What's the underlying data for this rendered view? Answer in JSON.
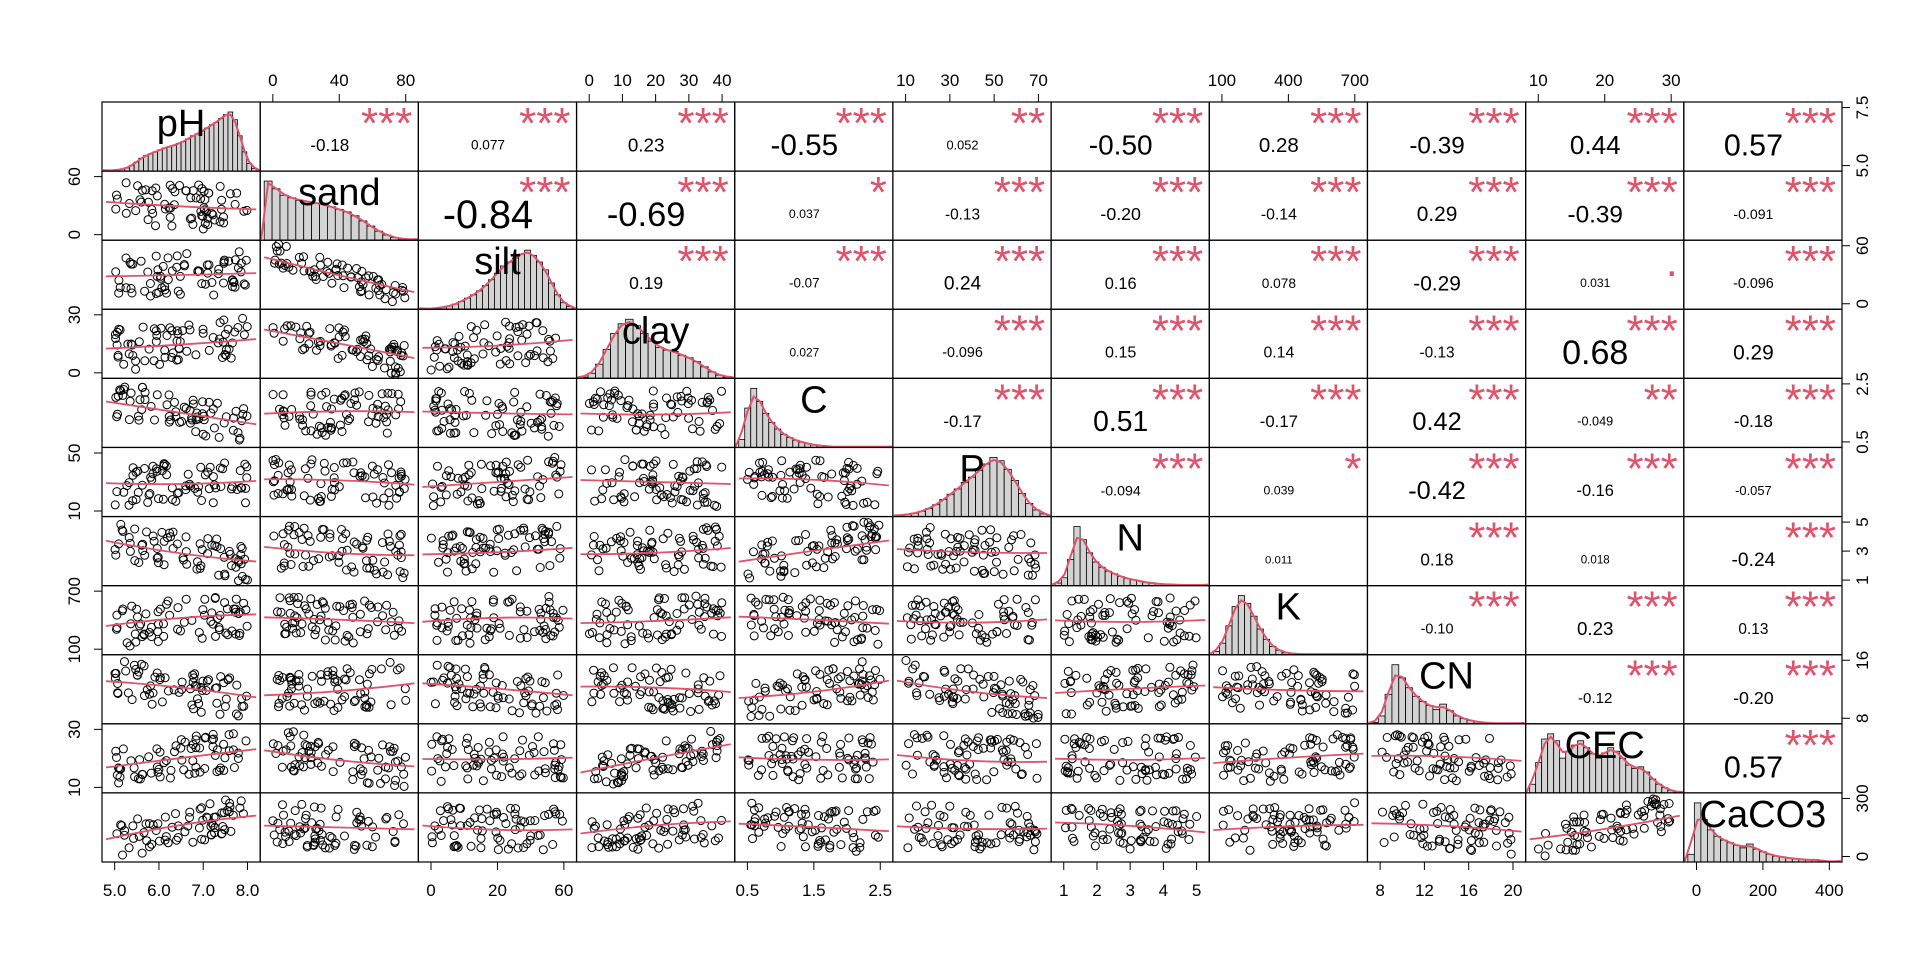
{
  "chart_data": {
    "type": "scatter-matrix",
    "variables": [
      "pH",
      "sand",
      "silt",
      "clay",
      "C",
      "P",
      "N",
      "K",
      "CN",
      "CEC",
      "CaCO3"
    ],
    "ranges": [
      [
        4.7,
        8.0
      ],
      [
        0,
        100
      ],
      [
        0,
        100
      ],
      [
        0,
        50
      ],
      [
        0.3,
        2.8
      ],
      [
        0,
        75
      ],
      [
        0.8,
        5.3
      ],
      [
        0,
        800
      ],
      [
        6,
        21
      ],
      [
        0,
        37
      ],
      [
        -30,
        430
      ]
    ],
    "axis_ticks": {
      "top": [
        {
          "var": 1,
          "labels": [
            "0",
            "40",
            "80"
          ]
        },
        {
          "var": 3,
          "labels": [
            "0",
            "10",
            "20",
            "30",
            "40"
          ]
        },
        {
          "var": 5,
          "labels": [
            "10",
            "30",
            "50",
            "70"
          ]
        },
        {
          "var": 7,
          "labels": [
            "100",
            "400",
            "700"
          ]
        },
        {
          "var": 9,
          "labels": [
            "10",
            "20",
            "30"
          ]
        }
      ],
      "bottom": [
        {
          "var": 0,
          "labels": [
            "5.0",
            "6.0",
            "7.0",
            "8.0"
          ]
        },
        {
          "var": 2,
          "labels": [
            "0",
            "20",
            "60"
          ]
        },
        {
          "var": 4,
          "labels": [
            "0.5",
            "1.5",
            "2.5"
          ]
        },
        {
          "var": 6,
          "labels": [
            "1",
            "2",
            "3",
            "4",
            "5"
          ]
        },
        {
          "var": 8,
          "labels": [
            "8",
            "12",
            "16",
            "20"
          ]
        },
        {
          "var": 10,
          "labels": [
            "0",
            "200",
            "400"
          ]
        }
      ],
      "left": [
        {
          "var": 1,
          "labels": [
            "0",
            "60"
          ]
        },
        {
          "var": 3,
          "labels": [
            "0",
            "30"
          ]
        },
        {
          "var": 5,
          "labels": [
            "10",
            "50"
          ]
        },
        {
          "var": 7,
          "labels": [
            "100",
            "700"
          ]
        },
        {
          "var": 9,
          "labels": [
            "10",
            "30"
          ]
        }
      ],
      "right": [
        {
          "var": 0,
          "labels": [
            "5.0",
            "7.5"
          ]
        },
        {
          "var": 2,
          "labels": [
            "0",
            "60"
          ]
        },
        {
          "var": 4,
          "labels": [
            "0.5",
            "2.5"
          ]
        },
        {
          "var": 6,
          "labels": [
            "1",
            "3",
            "5"
          ]
        },
        {
          "var": 8,
          "labels": [
            "8",
            "16"
          ]
        },
        {
          "var": 10,
          "labels": [
            "0",
            "300"
          ]
        }
      ]
    },
    "correlations": [
      {
        "row": 0,
        "col": 1,
        "r": "-0.18",
        "stars": "***"
      },
      {
        "row": 0,
        "col": 2,
        "r": "0.077",
        "stars": "***"
      },
      {
        "row": 0,
        "col": 3,
        "r": "0.23",
        "stars": "***"
      },
      {
        "row": 0,
        "col": 4,
        "r": "-0.55",
        "stars": "***"
      },
      {
        "row": 0,
        "col": 5,
        "r": "0.052",
        "stars": "**"
      },
      {
        "row": 0,
        "col": 6,
        "r": "-0.50",
        "stars": "***"
      },
      {
        "row": 0,
        "col": 7,
        "r": "0.28",
        "stars": "***"
      },
      {
        "row": 0,
        "col": 8,
        "r": "-0.39",
        "stars": "***"
      },
      {
        "row": 0,
        "col": 9,
        "r": "0.44",
        "stars": "***"
      },
      {
        "row": 0,
        "col": 10,
        "r": "0.57",
        "stars": "***"
      },
      {
        "row": 1,
        "col": 2,
        "r": "-0.84",
        "stars": "***"
      },
      {
        "row": 1,
        "col": 3,
        "r": "-0.69",
        "stars": "***"
      },
      {
        "row": 1,
        "col": 4,
        "r": "0.037",
        "stars": "*"
      },
      {
        "row": 1,
        "col": 5,
        "r": "-0.13",
        "stars": "***"
      },
      {
        "row": 1,
        "col": 6,
        "r": "-0.20",
        "stars": "***"
      },
      {
        "row": 1,
        "col": 7,
        "r": "-0.14",
        "stars": "***"
      },
      {
        "row": 1,
        "col": 8,
        "r": "0.29",
        "stars": "***"
      },
      {
        "row": 1,
        "col": 9,
        "r": "-0.39",
        "stars": "***"
      },
      {
        "row": 1,
        "col": 10,
        "r": "-0.091",
        "stars": "***"
      },
      {
        "row": 2,
        "col": 3,
        "r": "0.19",
        "stars": "***"
      },
      {
        "row": 2,
        "col": 4,
        "r": "-0.07",
        "stars": "***"
      },
      {
        "row": 2,
        "col": 5,
        "r": "0.24",
        "stars": "***"
      },
      {
        "row": 2,
        "col": 6,
        "r": "0.16",
        "stars": "***"
      },
      {
        "row": 2,
        "col": 7,
        "r": "0.078",
        "stars": "***"
      },
      {
        "row": 2,
        "col": 8,
        "r": "-0.29",
        "stars": "***"
      },
      {
        "row": 2,
        "col": 9,
        "r": "0.031",
        "stars": "."
      },
      {
        "row": 2,
        "col": 10,
        "r": "-0.096",
        "stars": "***"
      },
      {
        "row": 3,
        "col": 4,
        "r": "0.027",
        "stars": ""
      },
      {
        "row": 3,
        "col": 5,
        "r": "-0.096",
        "stars": "***"
      },
      {
        "row": 3,
        "col": 6,
        "r": "0.15",
        "stars": "***"
      },
      {
        "row": 3,
        "col": 7,
        "r": "0.14",
        "stars": "***"
      },
      {
        "row": 3,
        "col": 8,
        "r": "-0.13",
        "stars": "***"
      },
      {
        "row": 3,
        "col": 9,
        "r": "0.68",
        "stars": "***"
      },
      {
        "row": 3,
        "col": 10,
        "r": "0.29",
        "stars": "***"
      },
      {
        "row": 4,
        "col": 5,
        "r": "-0.17",
        "stars": "***"
      },
      {
        "row": 4,
        "col": 6,
        "r": "0.51",
        "stars": "***"
      },
      {
        "row": 4,
        "col": 7,
        "r": "-0.17",
        "stars": "***"
      },
      {
        "row": 4,
        "col": 8,
        "r": "0.42",
        "stars": "***"
      },
      {
        "row": 4,
        "col": 9,
        "r": "-0.049",
        "stars": "**"
      },
      {
        "row": 4,
        "col": 10,
        "r": "-0.18",
        "stars": "***"
      },
      {
        "row": 5,
        "col": 6,
        "r": "-0.094",
        "stars": "***"
      },
      {
        "row": 5,
        "col": 7,
        "r": "0.039",
        "stars": "*"
      },
      {
        "row": 5,
        "col": 8,
        "r": "-0.42",
        "stars": "***"
      },
      {
        "row": 5,
        "col": 9,
        "r": "-0.16",
        "stars": "***"
      },
      {
        "row": 5,
        "col": 10,
        "r": "-0.057",
        "stars": "***"
      },
      {
        "row": 6,
        "col": 7,
        "r": "0.011",
        "stars": ""
      },
      {
        "row": 6,
        "col": 8,
        "r": "0.18",
        "stars": "***"
      },
      {
        "row": 6,
        "col": 9,
        "r": "0.018",
        "stars": ""
      },
      {
        "row": 6,
        "col": 10,
        "r": "-0.24",
        "stars": "***"
      },
      {
        "row": 7,
        "col": 8,
        "r": "-0.10",
        "stars": "***"
      },
      {
        "row": 7,
        "col": 9,
        "r": "0.23",
        "stars": "***"
      },
      {
        "row": 7,
        "col": 10,
        "r": "0.13",
        "stars": "***"
      },
      {
        "row": 8,
        "col": 9,
        "r": "-0.12",
        "stars": "***"
      },
      {
        "row": 8,
        "col": 10,
        "r": "-0.20",
        "stars": "***"
      },
      {
        "row": 9,
        "col": 10,
        "r": "0.57",
        "stars": "***"
      }
    ],
    "histograms": [
      [
        1,
        1,
        2,
        3,
        5,
        9,
        14,
        20,
        24,
        27,
        30,
        33,
        36,
        38,
        40,
        43,
        46,
        50,
        55,
        58,
        62,
        67,
        72,
        76,
        82,
        88,
        92,
        80,
        55,
        30,
        12,
        4
      ],
      [
        92,
        80,
        70,
        66,
        62,
        60,
        58,
        56,
        52,
        48,
        44,
        38,
        30,
        22,
        14,
        8,
        4,
        2,
        1
      ],
      [
        1,
        1,
        2,
        3,
        5,
        8,
        12,
        17,
        22,
        28,
        36,
        45,
        55,
        66,
        72,
        78,
        84,
        90,
        82,
        72,
        60,
        40,
        22,
        10,
        4
      ],
      [
        2,
        8,
        22,
        45,
        70,
        85,
        92,
        82,
        70,
        58,
        48,
        44,
        42,
        36,
        32,
        26,
        18,
        10,
        5,
        2
      ],
      [
        12,
        60,
        90,
        70,
        52,
        38,
        28,
        20,
        15,
        11,
        8,
        6,
        4,
        3,
        2,
        1,
        1,
        1,
        1,
        1,
        1,
        1,
        1,
        1,
        1
      ],
      [
        2,
        3,
        5,
        8,
        12,
        18,
        26,
        34,
        42,
        52,
        60,
        70,
        80,
        90,
        85,
        72,
        55,
        35,
        20,
        10,
        4
      ],
      [
        4,
        12,
        40,
        90,
        70,
        50,
        36,
        28,
        22,
        18,
        14,
        11,
        9,
        7,
        5,
        4,
        3,
        2,
        2,
        1,
        1,
        1,
        1,
        1
      ],
      [
        5,
        18,
        45,
        75,
        92,
        80,
        60,
        40,
        24,
        13,
        7,
        3,
        2,
        1,
        1,
        1,
        1,
        1,
        1,
        1,
        1,
        1,
        1,
        1
      ],
      [
        2,
        12,
        45,
        90,
        70,
        55,
        42,
        34,
        28,
        22,
        30,
        20,
        12,
        8,
        5,
        3,
        2,
        1,
        1,
        1,
        1,
        1
      ],
      [
        10,
        35,
        62,
        68,
        60,
        40,
        48,
        55,
        60,
        52,
        45,
        40,
        46,
        52,
        48,
        40,
        32,
        28,
        30,
        24,
        16,
        10,
        6,
        3,
        1
      ],
      [
        12,
        92,
        66,
        50,
        40,
        34,
        30,
        26,
        22,
        28,
        20,
        16,
        12,
        9,
        8,
        6,
        5,
        4,
        3,
        4,
        2,
        1,
        1
      ]
    ]
  }
}
